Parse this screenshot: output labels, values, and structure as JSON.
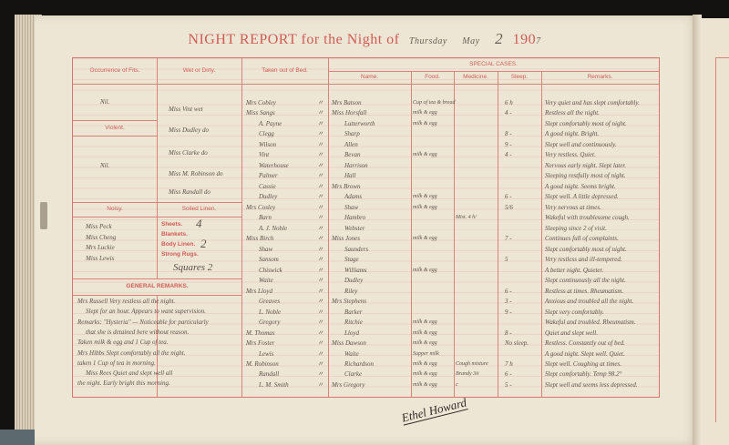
{
  "title": {
    "prefix": "NIGHT REPORT",
    "mid": "for the",
    "night_of": "Night of",
    "day": "Thursday",
    "month": "May",
    "date": "2",
    "year": "190",
    "year_hand": "7"
  },
  "headers": {
    "fits": "Occurrence of Fits.",
    "wet": "Wet or Dirty.",
    "taken": "Taken out of Bed.",
    "special": "SPECIAL CASES.",
    "name": "Name.",
    "food": "Food.",
    "medicine": "Medicine.",
    "sleep": "Sleep.",
    "remarks": "Remarks.",
    "violent": "Violent.",
    "noisy": "Noisy.",
    "soiled": "Soiled Linen.",
    "general": "GENERAL REMARKS."
  },
  "fits": {
    "fits_value": "Nil.",
    "violent_value": "Nil."
  },
  "wet_or_dirty": [
    "Miss Vint wet",
    "Miss Dudley do",
    "Miss Clarke do",
    "Miss M. Robinson do",
    "Miss Randall do"
  ],
  "noisy": [
    "Miss Peck",
    "Miss Cheng",
    "Mrs Luckie",
    "Miss Lewis"
  ],
  "soiled_linen": {
    "sheets_label": "Sheets.",
    "sheets": "4",
    "blankets_label": "Blankets.",
    "blankets": "",
    "body_label": "Body Linen.",
    "body": "2",
    "rugs_label": "Strong Rugs.",
    "rugs": "",
    "squares": "Squares 2"
  },
  "taken_out_of_bed": [
    "Mrs Cobley",
    "Miss Sangs",
    "A. Payne",
    "Clegg",
    "Wilson",
    "Vint",
    "Waterhouse",
    "Palmer",
    "Cassie",
    "Dudley",
    "Mrs Cosley",
    "Barn",
    "A. J. Noble",
    "Miss Birch",
    "Shaw",
    "Sansom",
    "Chiswick",
    "Waite",
    "Mrs Lloyd",
    "Greaves",
    "L. Noble",
    "Gregory",
    "M. Thomas",
    "Mrs Foster",
    "Lewis",
    "M. Robinson",
    "Randall",
    "L. M. Smith"
  ],
  "ditto": "〃",
  "special_cases": [
    {
      "name": "Mrs Batson",
      "food": "Cup of tea & bread",
      "medicine": "",
      "sleep": "6 h",
      "remarks": "Very quiet and has slept comfortably."
    },
    {
      "name": "Miss Horsfall",
      "food": "milk & egg",
      "medicine": "",
      "sleep": "4 -",
      "remarks": "Restless all the night."
    },
    {
      "name": "Lutterworth",
      "food": "milk & egg",
      "medicine": "",
      "sleep": "",
      "remarks": "Slept comfortably most of night."
    },
    {
      "name": "Sharp",
      "food": "",
      "medicine": "",
      "sleep": "8 -",
      "remarks": "A good night. Bright."
    },
    {
      "name": "Allen",
      "food": "",
      "medicine": "",
      "sleep": "9 -",
      "remarks": "Slept well and continuously."
    },
    {
      "name": "Bevan",
      "food": "milk & egg",
      "medicine": "",
      "sleep": "4 -",
      "remarks": "Very restless. Quiet."
    },
    {
      "name": "Harrison",
      "food": "",
      "medicine": "",
      "sleep": "",
      "remarks": "Nervous early night. Slept later."
    },
    {
      "name": "Hall",
      "food": "",
      "medicine": "",
      "sleep": "",
      "remarks": "Sleeping restfully most of night."
    },
    {
      "name": "Mrs Brown",
      "food": "",
      "medicine": "",
      "sleep": "",
      "remarks": "A good night. Seems bright."
    },
    {
      "name": "Adams",
      "food": "milk & egg",
      "medicine": "",
      "sleep": "6 -",
      "remarks": "Slept well. A little depressed."
    },
    {
      "name": "Shaw",
      "food": "milk & egg",
      "medicine": "",
      "sleep": "5/6",
      "remarks": "Very nervous at times."
    },
    {
      "name": "Hambro",
      "food": "",
      "medicine": "Mist. 4 h/",
      "sleep": "",
      "remarks": "Wakeful with troublesome cough."
    },
    {
      "name": "Webster",
      "food": "",
      "medicine": "",
      "sleep": "",
      "remarks": "Sleeping since 2 of visit."
    },
    {
      "name": "Miss Jones",
      "food": "milk & egg",
      "medicine": "",
      "sleep": "7 -",
      "remarks": "Continues full of complaints."
    },
    {
      "name": "Saunders",
      "food": "",
      "medicine": "",
      "sleep": "",
      "remarks": "Slept comfortably most of night."
    },
    {
      "name": "Stage",
      "food": "",
      "medicine": "",
      "sleep": "5",
      "remarks": "Very restless and ill-tempered."
    },
    {
      "name": "Williams",
      "food": "milk & egg",
      "medicine": "",
      "sleep": "",
      "remarks": "A better night. Quieter."
    },
    {
      "name": "Dudley",
      "food": "",
      "medicine": "",
      "sleep": "",
      "remarks": "Slept continuously all the night."
    },
    {
      "name": "Riley",
      "food": "",
      "medicine": "",
      "sleep": "6 -",
      "remarks": "Restless at times. Rheumatism."
    },
    {
      "name": "Mrs Stephens",
      "food": "",
      "medicine": "",
      "sleep": "3 -",
      "remarks": "Anxious and troubled all the night."
    },
    {
      "name": "Barker",
      "food": "",
      "medicine": "",
      "sleep": "9 -",
      "remarks": "Slept very comfortably."
    },
    {
      "name": "Ritchie",
      "food": "milk & egg",
      "medicine": "",
      "sleep": "",
      "remarks": "Wakeful and troubled. Rheumatism."
    },
    {
      "name": "Lloyd",
      "food": "milk & egg",
      "medicine": "",
      "sleep": "8 -",
      "remarks": "Quiet and slept well."
    },
    {
      "name": "Miss Dawson",
      "food": "milk & egg",
      "medicine": "",
      "sleep": "No sleep.",
      "remarks": "Restless. Constantly out of bed."
    },
    {
      "name": "Waite",
      "food": "Supper milk",
      "medicine": "",
      "sleep": "",
      "remarks": "A good night. Slept well. Quiet."
    },
    {
      "name": "Richardson",
      "food": "milk & egg",
      "medicine": "Cough mixture",
      "sleep": "7 h",
      "remarks": "Slept well. Coughing at times."
    },
    {
      "name": "Clarke",
      "food": "milk & egg",
      "medicine": "Brandy 3ii",
      "sleep": "6 -",
      "remarks": "Slept comfortably. Temp 98.2°"
    },
    {
      "name": "Mrs Gregory",
      "food": "milk & egg",
      "medicine": "c",
      "sleep": "5 -",
      "remarks": "Slept well and seems less depressed."
    }
  ],
  "general_remarks": [
    "Mrs Russell Very restless all the night.",
    "Slept for an hour. Appears to want supervision.",
    "Remarks: \"Hysteria\" — Noticeable for particularly",
    "that she is detained here without reason.",
    "Taken milk & egg and 1 Cup of tea.",
    "Mrs Hibbs Slept comfortably all the night.",
    "taken 1 Cup of tea in morning.",
    "Miss Rees Quiet and slept well all",
    "the night. Early bright this morning."
  ],
  "signature": "Ethel Howard",
  "colors": {
    "paper": "#eee6d5",
    "red_ink": "#cf5b55",
    "handwriting": "#5a5048"
  }
}
